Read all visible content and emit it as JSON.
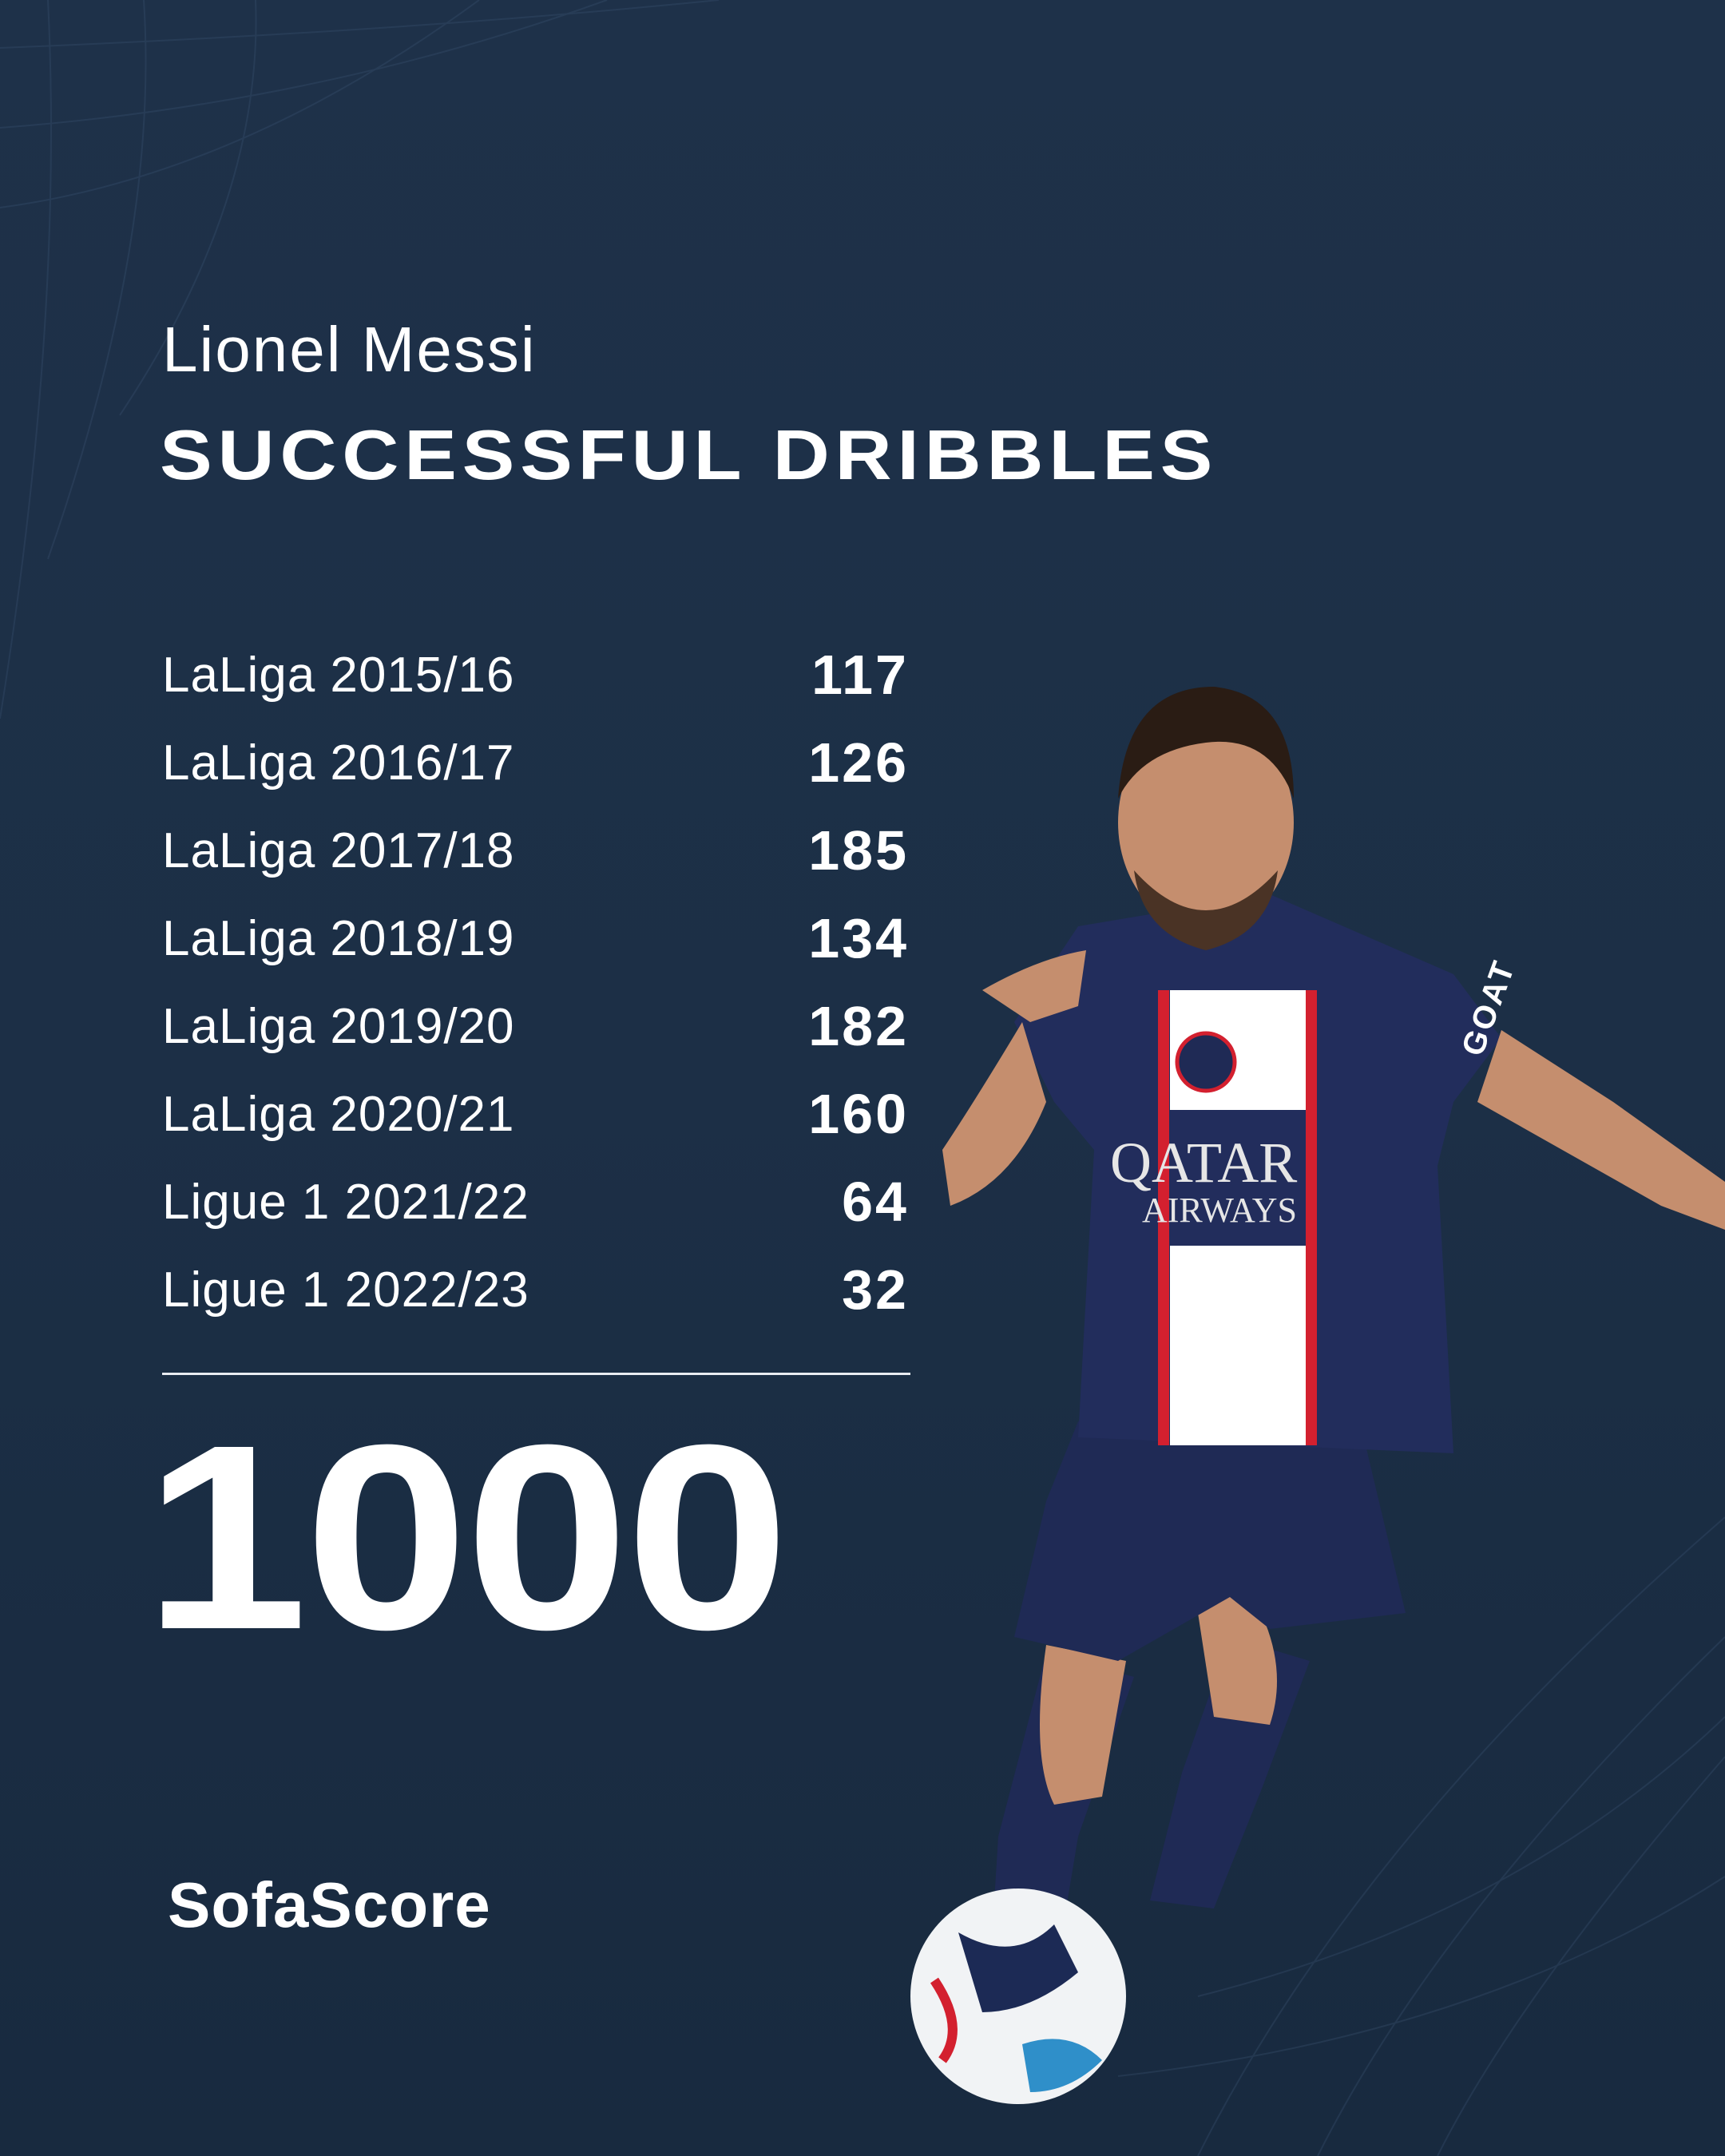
{
  "header": {
    "player_name": "Lionel Messi",
    "stat_title": "SUCCESSFUL DRIBBLES"
  },
  "seasons": [
    {
      "label": "LaLiga 2015/16",
      "value": "117"
    },
    {
      "label": "LaLiga 2016/17",
      "value": "126"
    },
    {
      "label": "LaLiga 2017/18",
      "value": "185"
    },
    {
      "label": "LaLiga 2018/19",
      "value": "134"
    },
    {
      "label": "LaLiga 2019/20",
      "value": "182"
    },
    {
      "label": "LaLiga 2020/21",
      "value": "160"
    },
    {
      "label": "Ligue 1 2021/22",
      "value": "64"
    },
    {
      "label": "Ligue 1 2022/23",
      "value": "32"
    }
  ],
  "total": "1000",
  "brand": "SofaScore",
  "photo": {
    "sponsor_line1": "QATAR",
    "sponsor_line2": "AIRWAYS",
    "sleeve_text": "GOAT"
  },
  "colors": {
    "background": "#1d3048",
    "text": "#ffffff",
    "jersey": "#1f2a55",
    "stripe_red": "#d3202f"
  }
}
